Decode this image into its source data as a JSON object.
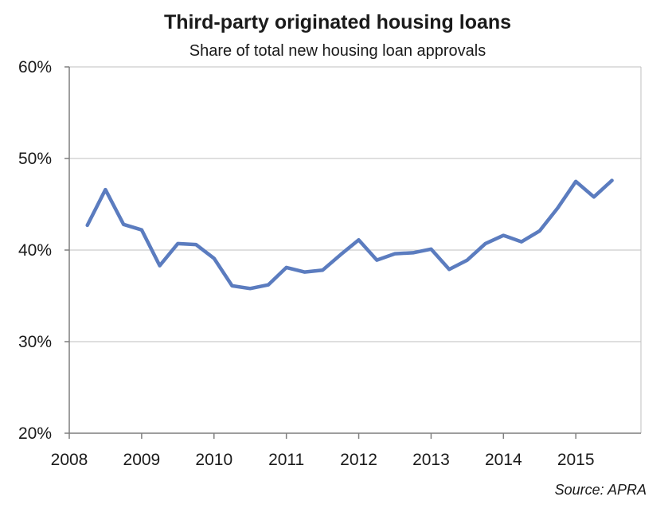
{
  "chart_data": {
    "type": "line",
    "title": "Third-party originated housing loans",
    "subtitle": "Share of total new housing loan approvals",
    "source": "Source: APRA",
    "xlabel": "",
    "ylabel": "",
    "xlim": [
      2008.0,
      2015.9
    ],
    "ylim": [
      20,
      60
    ],
    "y_ticks": [
      20,
      30,
      40,
      50,
      60
    ],
    "y_tick_labels": [
      "20%",
      "30%",
      "40%",
      "50%",
      "60%"
    ],
    "x_ticks": [
      2008,
      2009,
      2010,
      2011,
      2012,
      2013,
      2014,
      2015
    ],
    "x_tick_labels": [
      "2008",
      "2009",
      "2010",
      "2011",
      "2012",
      "2013",
      "2014",
      "2015"
    ],
    "grid": true,
    "legend": "none",
    "colors": {
      "line": "#5b7cbf",
      "grid": "#bfbfbf",
      "axis": "#7f7f7f"
    },
    "series": [
      {
        "x": [
          2008.25,
          2008.5,
          2008.75,
          2009.0,
          2009.25,
          2009.5,
          2009.75,
          2010.0,
          2010.25,
          2010.5,
          2010.75,
          2011.0,
          2011.25,
          2011.5,
          2011.75,
          2012.0,
          2012.25,
          2012.5,
          2012.75,
          2013.0,
          2013.25,
          2013.5,
          2013.75,
          2014.0,
          2014.25,
          2014.5,
          2014.75,
          2015.0,
          2015.25,
          2015.5
        ],
        "values": [
          42.7,
          46.6,
          42.8,
          42.2,
          38.3,
          40.7,
          40.6,
          39.1,
          36.1,
          35.8,
          36.2,
          38.1,
          37.6,
          37.8,
          39.5,
          41.1,
          38.9,
          39.6,
          39.7,
          40.1,
          37.9,
          38.9,
          40.7,
          41.6,
          40.9,
          42.1,
          44.6,
          47.5,
          45.8,
          47.6
        ]
      }
    ]
  }
}
